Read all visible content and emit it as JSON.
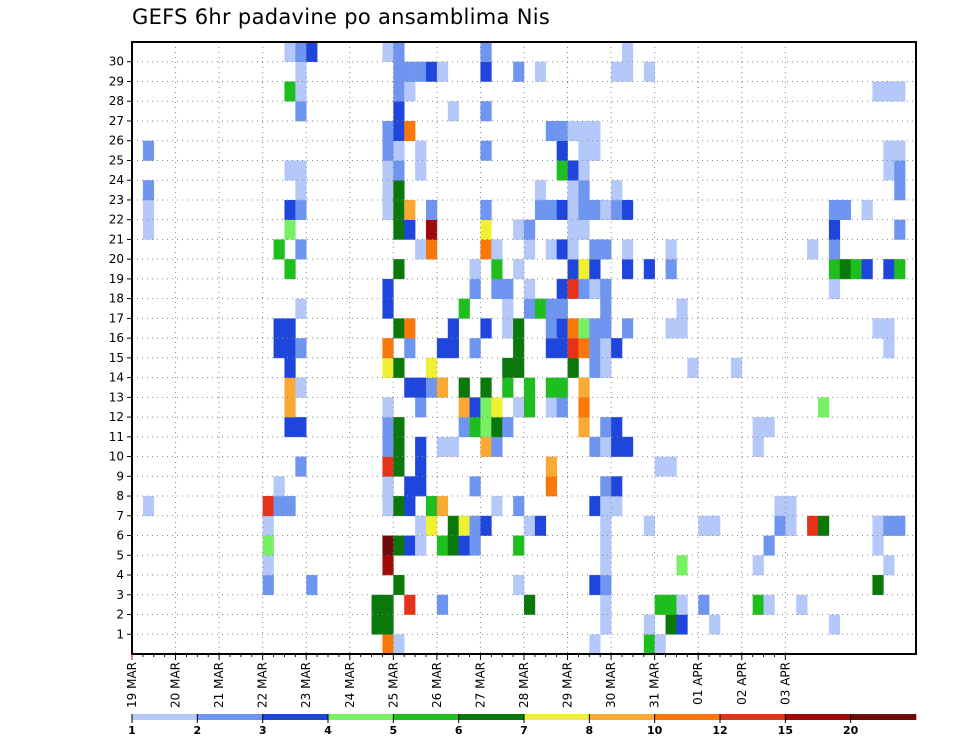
{
  "chart_data": {
    "type": "heatmap",
    "title": "GEFS 6hr padavine po ansamblima Nis",
    "xlabel": "",
    "ylabel": "",
    "x_ticks": [
      "19 MAR",
      "20 MAR",
      "21 MAR",
      "22 MAR",
      "23 MAR",
      "24 MAR",
      "25 MAR",
      "26 MAR",
      "27 MAR",
      "28 MAR",
      "29 MAR",
      "30 MAR",
      "31 MAR",
      "01 APR",
      "02 APR",
      "03 APR"
    ],
    "y_ticks": [
      "1",
      "2",
      "3",
      "4",
      "5",
      "6",
      "7",
      "8",
      "9",
      "10",
      "11",
      "12",
      "13",
      "14",
      "15",
      "16",
      "17",
      "18",
      "19",
      "20",
      "21",
      "22",
      "23",
      "24",
      "25",
      "26",
      "27",
      "28",
      "29",
      "30"
    ],
    "grid": true,
    "colorbar": {
      "labels": [
        "1",
        "2",
        "3",
        "4",
        "5",
        "6",
        "7",
        "8",
        "10",
        "12",
        "15",
        "20"
      ],
      "colors": [
        "#b4c8fa",
        "#6e96f0",
        "#1e46dc",
        "#78f064",
        "#1ebe1e",
        "#0a780a",
        "#f0f032",
        "#faaa32",
        "#fa780a",
        "#e63219",
        "#a00a0a",
        "#6e0a0a"
      ]
    },
    "cells_note": "each cell: [day_offset_from_19_MAR_in_6h_steps, member, color_class]",
    "cells": [
      [
        1,
        7,
        0
      ],
      [
        1,
        21,
        0
      ],
      [
        1,
        22,
        0
      ],
      [
        1,
        23,
        1
      ],
      [
        1,
        25,
        1
      ],
      [
        12,
        3,
        1
      ],
      [
        12,
        4,
        0
      ],
      [
        12,
        5,
        3
      ],
      [
        12,
        6,
        0
      ],
      [
        12,
        7,
        1
      ],
      [
        12,
        7,
        9
      ],
      [
        13,
        7,
        1
      ],
      [
        13,
        8,
        0
      ],
      [
        13,
        15,
        2
      ],
      [
        13,
        16,
        2
      ],
      [
        13,
        20,
        4
      ],
      [
        14,
        7,
        1
      ],
      [
        14,
        11,
        2
      ],
      [
        14,
        12,
        7
      ],
      [
        14,
        13,
        7
      ],
      [
        14,
        14,
        2
      ],
      [
        14,
        15,
        2
      ],
      [
        14,
        16,
        2
      ],
      [
        14,
        19,
        4
      ],
      [
        14,
        21,
        3
      ],
      [
        14,
        22,
        2
      ],
      [
        14,
        24,
        0
      ],
      [
        14,
        28,
        4
      ],
      [
        14,
        30,
        0
      ],
      [
        15,
        9,
        1
      ],
      [
        15,
        11,
        2
      ],
      [
        15,
        13,
        0
      ],
      [
        15,
        15,
        1
      ],
      [
        15,
        17,
        0
      ],
      [
        15,
        20,
        1
      ],
      [
        15,
        22,
        1
      ],
      [
        15,
        23,
        0
      ],
      [
        15,
        24,
        0
      ],
      [
        15,
        27,
        1
      ],
      [
        15,
        28,
        0
      ],
      [
        15,
        29,
        0
      ],
      [
        15,
        30,
        1
      ],
      [
        16,
        3,
        1
      ],
      [
        16,
        30,
        2
      ],
      [
        22,
        1,
        5
      ],
      [
        22,
        2,
        5
      ],
      [
        23,
        0,
        8
      ],
      [
        23,
        1,
        5
      ],
      [
        23,
        2,
        5
      ],
      [
        23,
        4,
        10
      ],
      [
        23,
        5,
        11
      ],
      [
        23,
        7,
        0
      ],
      [
        23,
        8,
        0
      ],
      [
        23,
        9,
        9
      ],
      [
        23,
        10,
        1
      ],
      [
        23,
        11,
        1
      ],
      [
        23,
        12,
        0
      ],
      [
        23,
        14,
        6
      ],
      [
        23,
        15,
        8
      ],
      [
        23,
        17,
        2
      ],
      [
        23,
        18,
        2
      ],
      [
        23,
        22,
        0
      ],
      [
        23,
        23,
        0
      ],
      [
        23,
        24,
        0
      ],
      [
        23,
        25,
        1
      ],
      [
        23,
        26,
        1
      ],
      [
        23,
        30,
        0
      ],
      [
        24,
        0,
        0
      ],
      [
        24,
        3,
        5
      ],
      [
        24,
        5,
        5
      ],
      [
        24,
        7,
        5
      ],
      [
        24,
        9,
        5
      ],
      [
        24,
        10,
        5
      ],
      [
        24,
        11,
        5
      ],
      [
        24,
        14,
        5
      ],
      [
        24,
        16,
        5
      ],
      [
        24,
        19,
        5
      ],
      [
        24,
        21,
        5
      ],
      [
        24,
        22,
        5
      ],
      [
        24,
        23,
        5
      ],
      [
        24,
        24,
        1
      ],
      [
        24,
        25,
        0
      ],
      [
        24,
        26,
        2
      ],
      [
        24,
        27,
        2
      ],
      [
        24,
        28,
        1
      ],
      [
        24,
        29,
        1
      ],
      [
        24,
        30,
        1
      ],
      [
        25,
        2,
        9
      ],
      [
        25,
        5,
        2
      ],
      [
        25,
        7,
        2
      ],
      [
        25,
        8,
        2
      ],
      [
        25,
        13,
        2
      ],
      [
        25,
        15,
        1
      ],
      [
        25,
        16,
        8
      ],
      [
        25,
        21,
        2
      ],
      [
        25,
        22,
        7
      ],
      [
        25,
        26,
        8
      ],
      [
        25,
        28,
        0
      ],
      [
        25,
        29,
        1
      ],
      [
        26,
        5,
        0
      ],
      [
        26,
        6,
        0
      ],
      [
        26,
        8,
        2
      ],
      [
        26,
        9,
        2
      ],
      [
        26,
        10,
        2
      ],
      [
        26,
        12,
        1
      ],
      [
        26,
        13,
        2
      ],
      [
        26,
        20,
        0
      ],
      [
        26,
        24,
        0
      ],
      [
        26,
        25,
        0
      ],
      [
        26,
        29,
        1
      ],
      [
        27,
        6,
        6
      ],
      [
        27,
        7,
        4
      ],
      [
        27,
        13,
        1
      ],
      [
        27,
        14,
        6
      ],
      [
        27,
        20,
        8
      ],
      [
        27,
        21,
        10
      ],
      [
        27,
        22,
        1
      ],
      [
        27,
        29,
        2
      ],
      [
        28,
        2,
        1
      ],
      [
        28,
        5,
        4
      ],
      [
        28,
        7,
        7
      ],
      [
        28,
        10,
        0
      ],
      [
        28,
        13,
        7
      ],
      [
        28,
        15,
        2
      ],
      [
        28,
        29,
        0
      ],
      [
        29,
        5,
        5
      ],
      [
        29,
        6,
        5
      ],
      [
        29,
        10,
        0
      ],
      [
        29,
        15,
        2
      ],
      [
        29,
        16,
        2
      ],
      [
        29,
        27,
        0
      ],
      [
        30,
        5,
        2
      ],
      [
        30,
        6,
        6
      ],
      [
        30,
        11,
        1
      ],
      [
        30,
        12,
        7
      ],
      [
        30,
        13,
        5
      ],
      [
        30,
        17,
        4
      ],
      [
        31,
        5,
        1
      ],
      [
        31,
        6,
        1
      ],
      [
        31,
        8,
        1
      ],
      [
        31,
        11,
        4
      ],
      [
        31,
        12,
        2
      ],
      [
        31,
        15,
        1
      ],
      [
        31,
        18,
        1
      ],
      [
        31,
        19,
        0
      ],
      [
        32,
        6,
        2
      ],
      [
        32,
        10,
        7
      ],
      [
        32,
        11,
        3
      ],
      [
        32,
        12,
        3
      ],
      [
        32,
        13,
        5
      ],
      [
        32,
        16,
        2
      ],
      [
        32,
        20,
        8
      ],
      [
        32,
        21,
        6
      ],
      [
        32,
        22,
        1
      ],
      [
        32,
        25,
        1
      ],
      [
        32,
        27,
        1
      ],
      [
        32,
        29,
        2
      ],
      [
        32,
        30,
        1
      ],
      [
        33,
        7,
        0
      ],
      [
        33,
        10,
        1
      ],
      [
        33,
        11,
        5
      ],
      [
        33,
        12,
        6
      ],
      [
        33,
        18,
        1
      ],
      [
        33,
        19,
        4
      ],
      [
        33,
        20,
        0
      ],
      [
        34,
        11,
        1
      ],
      [
        34,
        13,
        4
      ],
      [
        34,
        14,
        5
      ],
      [
        34,
        16,
        0
      ],
      [
        34,
        17,
        0
      ],
      [
        34,
        18,
        1
      ],
      [
        35,
        3,
        0
      ],
      [
        35,
        5,
        4
      ],
      [
        35,
        7,
        1
      ],
      [
        35,
        12,
        0
      ],
      [
        35,
        14,
        5
      ],
      [
        35,
        15,
        5
      ],
      [
        35,
        16,
        5
      ],
      [
        35,
        19,
        0
      ],
      [
        35,
        21,
        0
      ],
      [
        35,
        29,
        1
      ],
      [
        36,
        2,
        5
      ],
      [
        36,
        6,
        0
      ],
      [
        36,
        12,
        4
      ],
      [
        36,
        13,
        4
      ],
      [
        36,
        17,
        1
      ],
      [
        36,
        18,
        0
      ],
      [
        36,
        20,
        0
      ],
      [
        36,
        21,
        1
      ],
      [
        37,
        6,
        2
      ],
      [
        37,
        17,
        4
      ],
      [
        37,
        22,
        1
      ],
      [
        37,
        23,
        0
      ],
      [
        37,
        29,
        0
      ],
      [
        38,
        8,
        8
      ],
      [
        38,
        9,
        7
      ],
      [
        38,
        12,
        0
      ],
      [
        38,
        13,
        4
      ],
      [
        38,
        15,
        2
      ],
      [
        38,
        16,
        1
      ],
      [
        38,
        17,
        1
      ],
      [
        38,
        20,
        0
      ],
      [
        38,
        22,
        1
      ],
      [
        38,
        26,
        1
      ],
      [
        39,
        12,
        1
      ],
      [
        39,
        13,
        4
      ],
      [
        39,
        15,
        2
      ],
      [
        39,
        16,
        2
      ],
      [
        39,
        17,
        1
      ],
      [
        39,
        18,
        2
      ],
      [
        39,
        20,
        2
      ],
      [
        39,
        22,
        2
      ],
      [
        39,
        24,
        4
      ],
      [
        39,
        25,
        2
      ],
      [
        39,
        26,
        1
      ],
      [
        40,
        14,
        5
      ],
      [
        40,
        15,
        9
      ],
      [
        40,
        16,
        8
      ],
      [
        40,
        18,
        9
      ],
      [
        40,
        19,
        2
      ],
      [
        40,
        20,
        0
      ],
      [
        40,
        21,
        0
      ],
      [
        40,
        22,
        0
      ],
      [
        40,
        23,
        0
      ],
      [
        40,
        24,
        2
      ],
      [
        40,
        26,
        0
      ],
      [
        41,
        11,
        7
      ],
      [
        41,
        12,
        8
      ],
      [
        41,
        13,
        7
      ],
      [
        41,
        15,
        8
      ],
      [
        41,
        16,
        3
      ],
      [
        41,
        18,
        1
      ],
      [
        41,
        19,
        6
      ],
      [
        41,
        21,
        0
      ],
      [
        41,
        22,
        1
      ],
      [
        41,
        23,
        1
      ],
      [
        41,
        24,
        0
      ],
      [
        41,
        25,
        0
      ],
      [
        41,
        26,
        0
      ],
      [
        42,
        0,
        0
      ],
      [
        42,
        3,
        2
      ],
      [
        42,
        7,
        2
      ],
      [
        42,
        10,
        1
      ],
      [
        42,
        14,
        1
      ],
      [
        42,
        15,
        1
      ],
      [
        42,
        16,
        1
      ],
      [
        42,
        18,
        0
      ],
      [
        42,
        19,
        2
      ],
      [
        42,
        20,
        1
      ],
      [
        42,
        22,
        1
      ],
      [
        42,
        25,
        0
      ],
      [
        42,
        26,
        0
      ],
      [
        43,
        1,
        0
      ],
      [
        43,
        2,
        0
      ],
      [
        43,
        3,
        1
      ],
      [
        43,
        4,
        0
      ],
      [
        43,
        5,
        0
      ],
      [
        43,
        6,
        0
      ],
      [
        43,
        7,
        0
      ],
      [
        43,
        8,
        1
      ],
      [
        43,
        10,
        0
      ],
      [
        43,
        11,
        1
      ],
      [
        43,
        14,
        0
      ],
      [
        43,
        15,
        0
      ],
      [
        43,
        16,
        1
      ],
      [
        43,
        17,
        1
      ],
      [
        43,
        18,
        1
      ],
      [
        43,
        20,
        1
      ],
      [
        43,
        22,
        0
      ],
      [
        44,
        7,
        0
      ],
      [
        44,
        8,
        2
      ],
      [
        44,
        10,
        2
      ],
      [
        44,
        11,
        2
      ],
      [
        44,
        15,
        2
      ],
      [
        44,
        22,
        1
      ],
      [
        44,
        23,
        0
      ],
      [
        44,
        29,
        0
      ],
      [
        45,
        10,
        2
      ],
      [
        45,
        16,
        1
      ],
      [
        45,
        19,
        2
      ],
      [
        45,
        20,
        0
      ],
      [
        45,
        22,
        2
      ],
      [
        45,
        29,
        0
      ],
      [
        45,
        30,
        0
      ],
      [
        47,
        0,
        4
      ],
      [
        47,
        1,
        0
      ],
      [
        47,
        6,
        0
      ],
      [
        47,
        19,
        2
      ],
      [
        47,
        29,
        0
      ],
      [
        48,
        0,
        0
      ],
      [
        48,
        2,
        4
      ],
      [
        48,
        9,
        0
      ],
      [
        49,
        1,
        5
      ],
      [
        49,
        2,
        4
      ],
      [
        49,
        9,
        0
      ],
      [
        49,
        16,
        0
      ],
      [
        49,
        19,
        1
      ],
      [
        49,
        20,
        0
      ],
      [
        50,
        1,
        2
      ],
      [
        50,
        2,
        0
      ],
      [
        50,
        4,
        3
      ],
      [
        50,
        16,
        0
      ],
      [
        50,
        17,
        0
      ],
      [
        51,
        14,
        0
      ],
      [
        52,
        2,
        1
      ],
      [
        52,
        6,
        0
      ],
      [
        53,
        1,
        0
      ],
      [
        53,
        6,
        0
      ],
      [
        55,
        14,
        0
      ],
      [
        57,
        2,
        4
      ],
      [
        57,
        4,
        0
      ],
      [
        57,
        10,
        0
      ],
      [
        57,
        11,
        0
      ],
      [
        58,
        2,
        0
      ],
      [
        58,
        5,
        1
      ],
      [
        58,
        11,
        0
      ],
      [
        59,
        6,
        1
      ],
      [
        59,
        7,
        0
      ],
      [
        60,
        6,
        0
      ],
      [
        60,
        7,
        0
      ],
      [
        61,
        2,
        0
      ],
      [
        62,
        6,
        9
      ],
      [
        62,
        20,
        0
      ],
      [
        63,
        6,
        5
      ],
      [
        63,
        12,
        3
      ],
      [
        64,
        1,
        0
      ],
      [
        64,
        18,
        0
      ],
      [
        64,
        19,
        4
      ],
      [
        64,
        20,
        1
      ],
      [
        64,
        21,
        2
      ],
      [
        64,
        22,
        1
      ],
      [
        65,
        19,
        5
      ],
      [
        65,
        22,
        1
      ],
      [
        66,
        19,
        4
      ],
      [
        67,
        19,
        2
      ],
      [
        67,
        22,
        0
      ],
      [
        68,
        3,
        5
      ],
      [
        68,
        5,
        0
      ],
      [
        68,
        6,
        0
      ],
      [
        68,
        16,
        0
      ],
      [
        68,
        28,
        0
      ],
      [
        69,
        4,
        0
      ],
      [
        69,
        6,
        1
      ],
      [
        69,
        15,
        0
      ],
      [
        69,
        16,
        0
      ],
      [
        69,
        19,
        2
      ],
      [
        69,
        24,
        0
      ],
      [
        69,
        25,
        0
      ],
      [
        69,
        28,
        0
      ],
      [
        70,
        6,
        1
      ],
      [
        70,
        19,
        4
      ],
      [
        70,
        21,
        1
      ],
      [
        70,
        23,
        1
      ],
      [
        70,
        24,
        1
      ],
      [
        70,
        25,
        0
      ],
      [
        70,
        28,
        0
      ]
    ]
  }
}
